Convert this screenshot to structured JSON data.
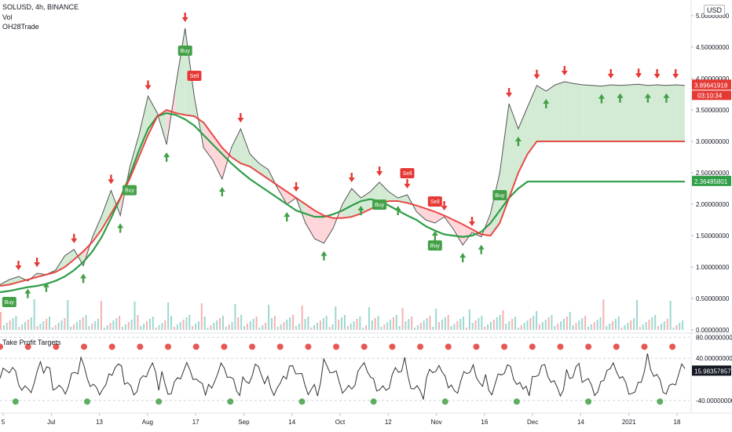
{
  "header": {
    "symbol_line": "SOLUSD, 4h, BINANCE",
    "indicator_vol": "Vol",
    "indicator_strategy": "OH28Trade",
    "currency": "USD"
  },
  "lower_pane": {
    "title": "Take Profit Targets"
  },
  "colors": {
    "up": "#26a69a",
    "down": "#ef5350",
    "price_line": "#555555",
    "slow_ma": "#2e9e47",
    "fast_ma": "#e53935",
    "buy": "#43a047",
    "sell": "#e53935",
    "fill_bull": "#c8e6c9",
    "fill_bear": "#ffcdd2",
    "osc_line": "#333333",
    "axis_text": "#131722"
  },
  "price_labels": {
    "last_price": "3.89641918",
    "countdown": "03:10:34",
    "ma_value": "2.36485801",
    "osc_value": "15.98357857"
  },
  "chart_data": [
    {
      "type": "line",
      "title": "SOLUSD, 4h, BINANCE",
      "x_ticks": [
        "5",
        "Jul",
        "13",
        "Aug",
        "17",
        "Sep",
        "14",
        "Oct",
        "12",
        "Nov",
        "16",
        "Dec",
        "14",
        "2021",
        "18"
      ],
      "y_ticks": [
        "5.00000000",
        "4.50000000",
        "4.00000000",
        "3.50000000",
        "3.00000000",
        "2.50000000",
        "2.00000000",
        "1.50000000",
        "1.00000000",
        "0.50000000",
        "0.00000000"
      ],
      "ylim": [
        0,
        5.15
      ],
      "series": [
        {
          "name": "SOLUSD",
          "x": [
            0,
            3,
            6,
            9,
            12,
            15,
            18,
            21,
            24,
            27,
            30,
            33,
            36,
            39,
            42,
            45,
            48,
            51,
            54,
            57,
            60,
            63,
            66,
            69,
            72,
            75,
            78,
            81,
            84,
            87,
            90,
            93,
            96,
            99,
            102,
            105,
            108,
            111,
            114,
            117,
            120,
            123,
            126,
            129,
            132,
            135,
            138,
            141,
            144,
            147,
            150,
            153,
            156,
            159,
            162,
            165,
            168,
            171,
            174,
            177,
            180,
            183,
            186,
            189,
            192,
            195,
            198,
            201,
            204,
            207,
            210,
            213,
            216,
            219,
            222
          ],
          "y": [
            0.72,
            0.8,
            0.85,
            0.78,
            0.9,
            0.88,
            0.95,
            1.18,
            1.28,
            1.02,
            1.48,
            1.82,
            2.22,
            1.82,
            2.58,
            3.1,
            3.72,
            3.45,
            2.95,
            3.9,
            4.8,
            3.7,
            2.9,
            2.7,
            2.4,
            2.9,
            3.2,
            2.8,
            2.65,
            2.55,
            2.25,
            2.0,
            2.1,
            1.7,
            1.45,
            1.38,
            1.62,
            2.0,
            2.25,
            2.1,
            2.2,
            2.35,
            2.2,
            2.1,
            2.15,
            1.88,
            1.75,
            1.7,
            1.8,
            1.6,
            1.35,
            1.55,
            1.48,
            1.85,
            2.5,
            3.6,
            3.2,
            3.55,
            3.89,
            3.8,
            3.9,
            3.95,
            3.92,
            3.9,
            3.89,
            3.88,
            3.9,
            3.89,
            3.9,
            3.91,
            3.89,
            3.9,
            3.89,
            3.9,
            3.89
          ]
        },
        {
          "name": "fast",
          "y": [
            0.7,
            0.72,
            0.76,
            0.8,
            0.84,
            0.88,
            0.92,
            1.0,
            1.12,
            1.25,
            1.4,
            1.6,
            1.85,
            2.1,
            2.4,
            2.75,
            3.1,
            3.4,
            3.5,
            3.45,
            3.42,
            3.4,
            3.3,
            3.1,
            2.9,
            2.75,
            2.65,
            2.6,
            2.5,
            2.4,
            2.3,
            2.2,
            2.1,
            2.0,
            1.9,
            1.82,
            1.78,
            1.78,
            1.8,
            1.85,
            1.92,
            2.0,
            2.05,
            2.05,
            2.02,
            1.98,
            1.93,
            1.88,
            1.82,
            1.75,
            1.68,
            1.6,
            1.52,
            1.5,
            1.7,
            2.1,
            2.5,
            2.8,
            3.0,
            3.0,
            3.0,
            3.0,
            3.0,
            3.0,
            3.0,
            3.0,
            3.0,
            3.0,
            3.0,
            3.0,
            3.0,
            3.0,
            3.0,
            3.0,
            3.0
          ]
        },
        {
          "name": "slow",
          "y": [
            0.6,
            0.62,
            0.65,
            0.68,
            0.7,
            0.73,
            0.78,
            0.85,
            0.95,
            1.08,
            1.25,
            1.48,
            1.78,
            2.1,
            2.45,
            2.85,
            3.2,
            3.4,
            3.45,
            3.42,
            3.35,
            3.25,
            3.1,
            2.95,
            2.8,
            2.65,
            2.52,
            2.4,
            2.3,
            2.2,
            2.1,
            2.0,
            1.9,
            1.85,
            1.8,
            1.8,
            1.84,
            1.9,
            1.98,
            2.05,
            2.08,
            2.05,
            1.98,
            1.9,
            1.82,
            1.75,
            1.65,
            1.58,
            1.52,
            1.5,
            1.48,
            1.5,
            1.56,
            1.7,
            1.9,
            2.1,
            2.25,
            2.36,
            2.36,
            2.36,
            2.36,
            2.36,
            2.36,
            2.36,
            2.36,
            2.36,
            2.36,
            2.36,
            2.36,
            2.36,
            2.36,
            2.36,
            2.36,
            2.36,
            2.36
          ]
        }
      ],
      "annotations": {
        "buy_labels": [
          "Buy",
          "Buy",
          "Buy",
          "Buy",
          "Buy",
          "Buy"
        ],
        "sell_labels": [
          "Sell",
          "Sell",
          "Sell"
        ]
      }
    },
    {
      "type": "line",
      "title": "Take Profit Targets",
      "y_ticks": [
        "80.00000000",
        "40.00000000",
        "-40.00000000"
      ],
      "ylim": [
        -55,
        85
      ],
      "last_value": 15.98357857
    }
  ]
}
